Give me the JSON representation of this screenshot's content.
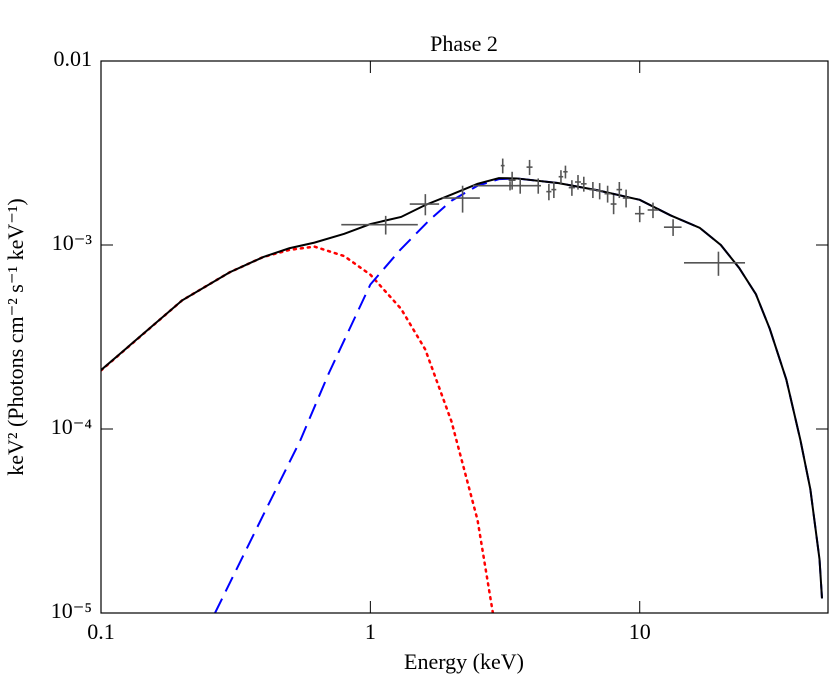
{
  "chart_data": {
    "type": "line",
    "title": "Phase 2",
    "xlabel": "Energy (keV)",
    "ylabel": "keV² (Photons cm⁻² s⁻¹ keV⁻¹)",
    "xscale": "log",
    "yscale": "log",
    "xlim": [
      0.1,
      50
    ],
    "ylim": [
      1e-05,
      0.01
    ],
    "xticks": [
      0.1,
      1,
      10
    ],
    "yticks": [
      {
        "value": 1e-05,
        "label": "10⁻⁵"
      },
      {
        "value": 0.0001,
        "label": "10⁻⁴"
      },
      {
        "value": 0.001,
        "label": "10⁻³"
      },
      0.01
    ],
    "series": [
      {
        "type": "line",
        "style": "dotted",
        "color": "#ff0000",
        "x": [
          0.1,
          0.2,
          0.3,
          0.4,
          0.5,
          0.62,
          0.8,
          1.0,
          1.3,
          1.6,
          2.0,
          2.5,
          2.85
        ],
        "values": [
          0.000208,
          0.0005,
          0.00071,
          0.00086,
          0.00094,
          0.00098,
          0.00087,
          0.00069,
          0.00045,
          0.00027,
          0.00011,
          3.2e-05,
          1e-05
        ]
      },
      {
        "type": "line",
        "style": "dashed",
        "color": "#0000ff",
        "x": [
          0.265,
          0.4,
          0.55,
          0.7,
          1.0,
          1.29,
          1.66,
          2.0,
          2.5,
          3.0,
          3.5,
          5,
          7,
          10,
          13,
          16.7,
          20,
          23.4,
          27,
          30.4,
          35,
          39.5,
          43,
          46.5,
          47.5
        ],
        "values": [
          1e-05,
          3.4e-05,
          8.7e-05,
          0.0002,
          0.00061,
          0.00094,
          0.00137,
          0.00174,
          0.0021,
          0.00228,
          0.0023,
          0.00217,
          0.00198,
          0.00176,
          0.00145,
          0.00124,
          0.001,
          0.00075,
          0.00054,
          0.00035,
          0.000186,
          8.7e-05,
          4.7e-05,
          1.96e-05,
          1.2e-05
        ]
      },
      {
        "type": "line",
        "style": "solid",
        "color": "#000000",
        "x": [
          0.1,
          0.2,
          0.3,
          0.4,
          0.5,
          0.62,
          0.8,
          1.0,
          1.3,
          1.6,
          2.0,
          2.5,
          3.0,
          3.5,
          5,
          7,
          10,
          13,
          16.7,
          20,
          23.4,
          27,
          30.4,
          35,
          39.5,
          43,
          46.5,
          47.5
        ],
        "values": [
          0.000209,
          0.0005,
          0.00071,
          0.00086,
          0.00096,
          0.00103,
          0.00115,
          0.0013,
          0.00142,
          0.00165,
          0.00188,
          0.00215,
          0.00231,
          0.0023,
          0.00217,
          0.00198,
          0.00176,
          0.00145,
          0.00124,
          0.001,
          0.00075,
          0.00054,
          0.00035,
          0.000186,
          8.7e-05,
          4.7e-05,
          1.96e-05,
          1.2e-05
        ]
      },
      {
        "type": "errorbar",
        "color": "#555555",
        "x": [
          1.14,
          1.6,
          2.2,
          3.3,
          3.1,
          3.36,
          3.6,
          3.9,
          4.2,
          4.6,
          4.8,
          5.1,
          5.3,
          5.6,
          5.9,
          6.2,
          6.7,
          7.1,
          7.6,
          8.0,
          8.4,
          8.9,
          10,
          11.2,
          13.3,
          19.6
        ],
        "xerr": [
          0.36,
          0.2,
          0.35,
          0.9,
          0.05,
          0.1,
          0.1,
          0.1,
          0.1,
          0.1,
          0.1,
          0.1,
          0.1,
          0.15,
          0.15,
          0.15,
          0.2,
          0.2,
          0.2,
          0.2,
          0.2,
          0.25,
          0.4,
          0.5,
          1,
          5
        ],
        "values": [
          0.00129,
          0.00167,
          0.0018,
          0.0021,
          0.0027,
          0.00225,
          0.0021,
          0.00265,
          0.0021,
          0.00195,
          0.002,
          0.00235,
          0.0025,
          0.00205,
          0.0022,
          0.00215,
          0.002,
          0.00197,
          0.0019,
          0.00167,
          0.002,
          0.0018,
          0.00148,
          0.00155,
          0.00125,
          0.0008
        ],
        "yerr": [
          0.00015,
          0.00022,
          0.0003,
          0.00012,
          0.00025,
          0.00025,
          0.0002,
          0.00025,
          0.0002,
          0.0002,
          0.0002,
          0.0002,
          0.0002,
          0.0002,
          0.0002,
          0.0002,
          0.0002,
          0.0002,
          0.0002,
          0.0002,
          0.0002,
          0.0002,
          0.00015,
          0.00015,
          0.00013,
          0.00012
        ]
      }
    ]
  }
}
